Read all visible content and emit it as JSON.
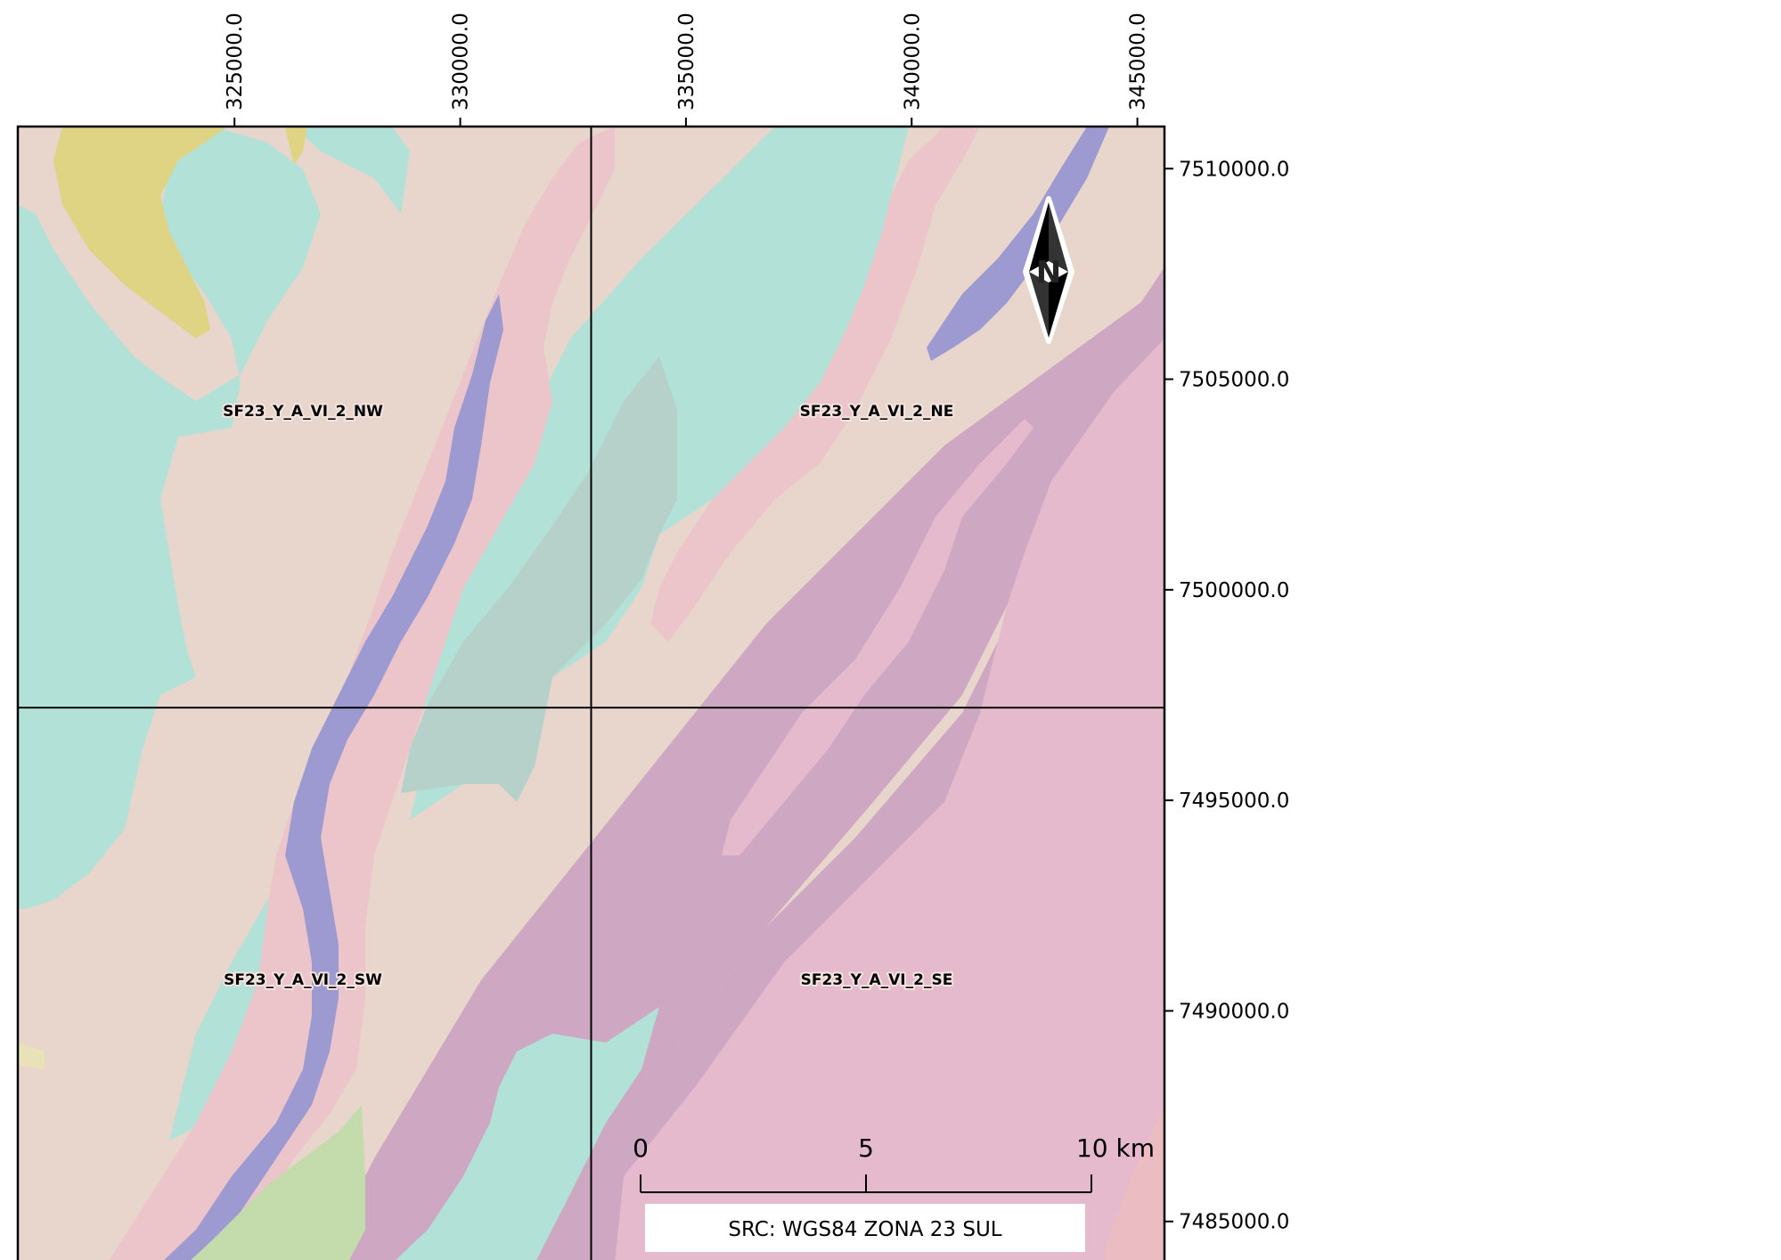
{
  "x_axis": {
    "tick_labels": [
      "325000.0",
      "330000.0",
      "335000.0",
      "340000.0",
      "345000.0"
    ],
    "values": [
      325000,
      330000,
      335000,
      340000,
      345000
    ]
  },
  "y_axis": {
    "tick_labels": [
      "7510000.0",
      "7505000.0",
      "7500000.0",
      "7495000.0",
      "7490000.0",
      "7485000.0"
    ],
    "values": [
      7510000,
      7505000,
      7500000,
      7495000,
      7490000,
      7485000
    ]
  },
  "map_extent": {
    "x_min": 320200,
    "x_max": 345600,
    "y_min": 7484000,
    "y_max": 7511000
  },
  "quadrants": {
    "nw": "SF23_Y_A_VI_2_NW",
    "ne": "SF23_Y_A_VI_2_NE",
    "sw": "SF23_Y_A_VI_2_SW",
    "se": "SF23_Y_A_VI_2_SE"
  },
  "grid_lines": {
    "vertical_x": 332900,
    "horizontal_y": 7497200
  },
  "scale_bar": {
    "tick_labels": [
      "0",
      "5",
      "10 km"
    ],
    "distances_km": [
      0,
      5,
      10
    ]
  },
  "crs_label": "SRC: WGS84 ZONA 23 SUL",
  "north_arrow": {
    "letter": "N",
    "icon": "north-arrow-icon"
  },
  "colors": {
    "background_unit": "#e8d5cb",
    "teal_unit": "#b2e1d8",
    "pink_unit": "#ebc5ca",
    "purple_unit": "#9c9ad0",
    "mauve_unit": "#cea8c3",
    "magenta_pink_unit": "#e6bacd",
    "olive_unit": "#ded484",
    "green_unit": "#c4dcab",
    "grey_unit": "#b6d0ca"
  }
}
